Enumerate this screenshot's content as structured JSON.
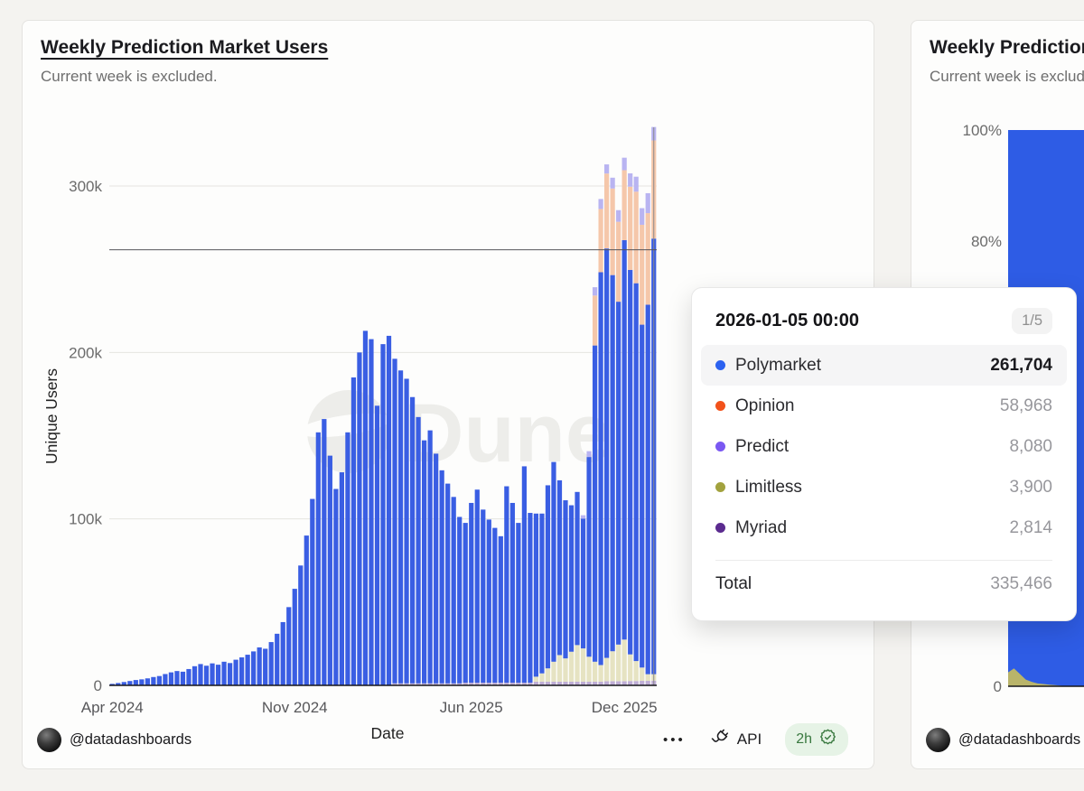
{
  "page": {
    "background": "#f4f3f0"
  },
  "left_card": {
    "title": "Weekly Prediction Market Users",
    "subtitle": "Current week is excluded.",
    "footer": {
      "author_handle": "@datadashboards",
      "menu_icon": "•••",
      "api_label": "API",
      "freshness_badge": "2h"
    },
    "watermark_text": "Dune",
    "chart_data": {
      "type": "bar",
      "stacked": true,
      "title": "Weekly Prediction Market Users",
      "xlabel": "Date",
      "ylabel": "Unique Users",
      "ylim": [
        0,
        340000
      ],
      "grid": true,
      "x_weeks_start": "2024-04-01",
      "x_weeks_end": "2026-01-05",
      "weeks": 93,
      "y_ticks": [
        {
          "label": "0",
          "value": 0
        },
        {
          "label": "100k",
          "value": 100000
        },
        {
          "label": "200k",
          "value": 200000
        },
        {
          "label": "300k",
          "value": 300000
        }
      ],
      "x_ticks": [
        {
          "label": "Apr 2024",
          "index": 0
        },
        {
          "label": "Nov 2024",
          "index": 31
        },
        {
          "label": "Jun 2025",
          "index": 61
        },
        {
          "label": "Dec 2025",
          "index": 87
        }
      ],
      "stack_order_bottom_to_top": [
        "Myriad",
        "Limitless",
        "Polymarket",
        "Opinion",
        "Predict"
      ],
      "hover": {
        "index": 92,
        "date_label": "2026-01-05 00:00",
        "line_value": 261704
      },
      "series": [
        {
          "name": "Polymarket",
          "bar_color": "#3a5ee3",
          "legend_color": "#2c62f0",
          "values": [
            900,
            1400,
            2000,
            2600,
            3200,
            3600,
            4200,
            5000,
            5600,
            6800,
            7800,
            8600,
            8200,
            9800,
            11500,
            12800,
            11800,
            13200,
            12400,
            14200,
            13400,
            15400,
            16800,
            18400,
            20400,
            22800,
            22000,
            26000,
            31000,
            38000,
            47000,
            58000,
            72000,
            90000,
            112000,
            152000,
            160000,
            138000,
            118000,
            128000,
            152000,
            185000,
            200000,
            213000,
            208000,
            168000,
            205000,
            210000,
            195000,
            188000,
            183000,
            172000,
            160000,
            146000,
            152000,
            138000,
            128000,
            120000,
            112000,
            100000,
            96000,
            108000,
            116000,
            104000,
            98000,
            93000,
            88000,
            118000,
            108000,
            96000,
            130000,
            102000,
            98000,
            96000,
            110000,
            120000,
            105000,
            95000,
            88000,
            92000,
            78000,
            120000,
            190000,
            236000,
            246000,
            226000,
            206000,
            240000,
            231000,
            227000,
            206000,
            222000,
            261704
          ]
        },
        {
          "name": "Opinion",
          "bar_color": "#f5c7aa",
          "legend_color": "#f2521b",
          "values": [
            0,
            0,
            0,
            0,
            0,
            0,
            0,
            0,
            0,
            0,
            0,
            0,
            0,
            0,
            0,
            0,
            0,
            0,
            0,
            0,
            0,
            0,
            0,
            0,
            0,
            0,
            0,
            0,
            0,
            0,
            0,
            0,
            0,
            0,
            0,
            0,
            0,
            0,
            0,
            0,
            0,
            0,
            0,
            0,
            0,
            0,
            0,
            0,
            0,
            0,
            0,
            0,
            0,
            0,
            0,
            0,
            0,
            0,
            0,
            0,
            0,
            0,
            0,
            0,
            0,
            0,
            0,
            0,
            0,
            0,
            0,
            0,
            0,
            0,
            0,
            0,
            0,
            0,
            0,
            0,
            0,
            0,
            30000,
            38000,
            45000,
            52000,
            48000,
            42000,
            50000,
            55000,
            60000,
            55000,
            58968
          ]
        },
        {
          "name": "Predict",
          "bar_color": "#b9b4f1",
          "legend_color": "#7a58f2",
          "values": [
            0,
            0,
            0,
            0,
            0,
            0,
            0,
            0,
            0,
            0,
            0,
            0,
            0,
            0,
            0,
            0,
            0,
            0,
            0,
            0,
            0,
            0,
            0,
            0,
            0,
            0,
            0,
            0,
            0,
            0,
            0,
            0,
            0,
            0,
            0,
            0,
            0,
            0,
            0,
            0,
            0,
            0,
            0,
            0,
            0,
            0,
            0,
            0,
            0,
            0,
            0,
            0,
            0,
            0,
            0,
            0,
            0,
            0,
            0,
            0,
            0,
            0,
            0,
            0,
            0,
            0,
            0,
            0,
            0,
            0,
            0,
            0,
            0,
            0,
            0,
            0,
            0,
            0,
            0,
            0,
            2000,
            3500,
            5000,
            6000,
            5500,
            6500,
            7000,
            7500,
            8000,
            9000,
            10000,
            12000,
            8080
          ]
        },
        {
          "name": "Limitless",
          "bar_color": "#e6e3c2",
          "legend_color": "#a2a23e",
          "values": [
            0,
            0,
            0,
            0,
            0,
            0,
            0,
            0,
            0,
            0,
            0,
            0,
            0,
            0,
            0,
            0,
            0,
            0,
            0,
            0,
            0,
            0,
            0,
            0,
            0,
            0,
            0,
            0,
            0,
            0,
            0,
            0,
            0,
            0,
            0,
            0,
            0,
            0,
            0,
            0,
            0,
            0,
            0,
            0,
            0,
            0,
            0,
            0,
            0,
            0,
            0,
            0,
            0,
            0,
            0,
            0,
            0,
            0,
            0,
            0,
            0,
            0,
            0,
            0,
            0,
            0,
            0,
            0,
            0,
            0,
            0,
            0,
            3000,
            5000,
            8000,
            12000,
            16000,
            14000,
            18000,
            22000,
            20000,
            15000,
            12000,
            10000,
            14000,
            18000,
            22000,
            25000,
            16000,
            12000,
            8000,
            4000,
            3900
          ]
        },
        {
          "name": "Myriad",
          "bar_color": "#bfaed6",
          "legend_color": "#5b2b8f",
          "values": [
            0,
            0,
            0,
            0,
            0,
            0,
            0,
            0,
            0,
            0,
            0,
            0,
            0,
            0,
            0,
            0,
            0,
            0,
            0,
            0,
            0,
            0,
            0,
            0,
            0,
            0,
            0,
            0,
            0,
            0,
            0,
            0,
            0,
            0,
            0,
            0,
            0,
            0,
            0,
            0,
            0,
            0,
            0,
            0,
            0,
            0,
            0,
            0,
            1200,
            1200,
            1200,
            1200,
            1200,
            1200,
            1200,
            1200,
            1200,
            1200,
            1200,
            1200,
            1600,
            1600,
            1600,
            1600,
            1600,
            1600,
            1600,
            1600,
            1600,
            1600,
            1600,
            1600,
            2200,
            2200,
            2200,
            2200,
            2200,
            2200,
            2200,
            2200,
            2200,
            2200,
            2200,
            2200,
            2500,
            2500,
            2500,
            2500,
            2600,
            2600,
            2700,
            2700,
            2814
          ]
        }
      ]
    }
  },
  "tooltip": {
    "date": "2026-01-05 00:00",
    "pager": "1/5",
    "rows": [
      {
        "label": "Polymarket",
        "value": "261,704",
        "dot_color": "#2c62f0",
        "highlight": true
      },
      {
        "label": "Opinion",
        "value": "58,968",
        "dot_color": "#f2521b",
        "highlight": false
      },
      {
        "label": "Predict",
        "value": "8,080",
        "dot_color": "#7a58f2",
        "highlight": false
      },
      {
        "label": "Limitless",
        "value": "3,900",
        "dot_color": "#a2a23e",
        "highlight": false
      },
      {
        "label": "Myriad",
        "value": "2,814",
        "dot_color": "#5b2b8f",
        "highlight": false
      }
    ],
    "total_label": "Total",
    "total_value": "335,466"
  },
  "right_card": {
    "title_visible": "Weekly Prediction Market Users",
    "subtitle_visible": "Current week is excluded.",
    "author_handle_visible": "@datadashboards",
    "y_ticks": [
      "100%",
      "80%",
      "0"
    ],
    "chart_data": {
      "type": "area",
      "stacked_percent": true,
      "x_weeks_start": "2024-04-01",
      "y_tick_values": [
        100,
        80,
        0
      ],
      "series": [
        {
          "name": "Polymarket",
          "color": "#2e5ce5",
          "share_pct": [
            97.5,
            96.8,
            97.8,
            98.8,
            99.2,
            99.5,
            99.6,
            99.7,
            99.8,
            99.9,
            100,
            100,
            100
          ]
        },
        {
          "name": "Limitless",
          "color": "#b9b46a",
          "share_pct": [
            2.5,
            3.2,
            2.2,
            1.2,
            0.8,
            0.5,
            0.4,
            0.3,
            0.2,
            0.1,
            0,
            0,
            0
          ]
        }
      ]
    }
  }
}
